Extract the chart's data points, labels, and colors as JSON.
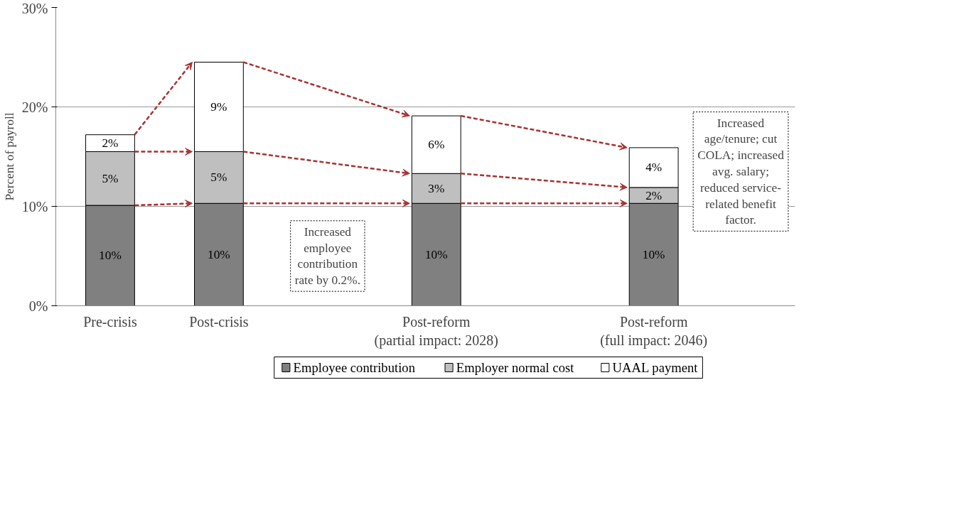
{
  "chart_data": {
    "type": "bar",
    "stacked": true,
    "ylabel": "Percent of payroll",
    "categories": [
      "Pre-crisis",
      "Post-crisis",
      null,
      "Post-reform\n(partial impact: 2028)",
      null,
      "Post-reform\n(full impact: 2046)"
    ],
    "series": [
      {
        "name": "Employee contribution",
        "color": "#808080",
        "values": [
          10.1,
          10.3,
          null,
          10.3,
          null,
          10.3
        ],
        "value_labels": [
          "10%",
          "10%",
          null,
          "10%",
          null,
          "10%"
        ]
      },
      {
        "name": "Employer normal cost",
        "color": "#bfbfbf",
        "values": [
          5.4,
          5.2,
          null,
          3.0,
          null,
          1.6
        ],
        "value_labels": [
          "5%",
          "5%",
          null,
          "3%",
          null,
          "2%"
        ]
      },
      {
        "name": "UAAL payment",
        "color": "#ffffff",
        "values": [
          1.7,
          9.0,
          null,
          5.8,
          null,
          4.0
        ],
        "value_labels": [
          "2%",
          "9%",
          null,
          "6%",
          null,
          "4%"
        ]
      }
    ],
    "ylim": [
      0,
      30
    ],
    "yticks": [
      {
        "value": 0,
        "label": "0%"
      },
      {
        "value": 10,
        "label": "10%"
      },
      {
        "value": 20,
        "label": "20%"
      },
      {
        "value": 30,
        "label": "30%"
      }
    ],
    "grid": "y",
    "legend": "bottom",
    "annotations": [
      "Increased employee contribution rate by 0.2%.",
      "Increased age/tenure; cut COLA; increased avg. salary; reduced service-related benefit factor."
    ]
  }
}
